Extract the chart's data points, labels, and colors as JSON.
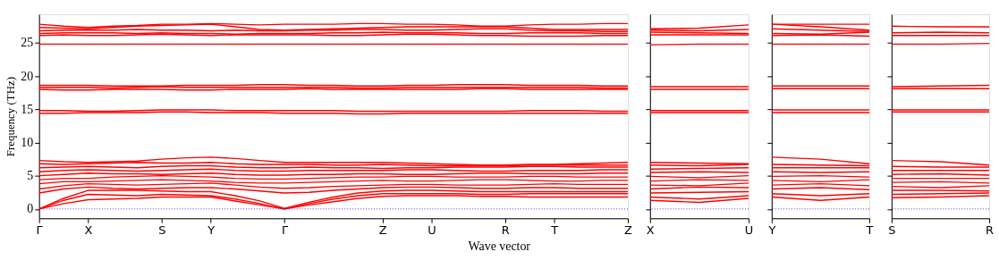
{
  "chart_data": [
    {
      "type": "line",
      "xlabel": "Wave vector",
      "ylabel": "Frequency (THz)",
      "ylim": [
        -1.4,
        29.3
      ],
      "yticks": [
        0,
        5,
        10,
        15,
        20,
        25
      ],
      "categories": [
        "Γ",
        null,
        "X",
        null,
        null,
        "S",
        null,
        "Y",
        null,
        null,
        "Γ",
        null,
        null,
        null,
        "Z",
        null,
        "U",
        null,
        null,
        "R",
        null,
        "T",
        null,
        null,
        "Z"
      ],
      "ref_lines": [
        {
          "axis": "y",
          "value": 0,
          "color": "#0000ff",
          "line_style": "dotted"
        }
      ],
      "series": [
        {
          "color": "#ff0000",
          "values": [
            0,
            0.8,
            1.4,
            1.5,
            1.6,
            1.8,
            1.8,
            1.8,
            1.2,
            0.6,
            0,
            0.6,
            1.1,
            1.6,
            1.9,
            2.0,
            2.0,
            2.0,
            1.9,
            1.9,
            1.8,
            1.8,
            1.8,
            1.8,
            1.8
          ]
        },
        {
          "color": "#ff0000",
          "values": [
            0,
            1.3,
            2.2,
            2.1,
            2.0,
            2.2,
            2.1,
            2.0,
            1.5,
            0.8,
            0,
            0.8,
            1.5,
            2.0,
            2.3,
            2.3,
            2.3,
            2.3,
            2.2,
            2.2,
            2.3,
            2.3,
            2.3,
            2.3,
            2.3
          ]
        },
        {
          "color": "#ff0000",
          "values": [
            0,
            1.6,
            2.8,
            2.8,
            2.8,
            2.7,
            2.6,
            2.6,
            2.0,
            1.2,
            0.1,
            1.0,
            1.8,
            2.4,
            2.7,
            2.8,
            2.8,
            2.7,
            2.6,
            2.6,
            2.6,
            2.6,
            2.6,
            2.6,
            2.6
          ]
        },
        {
          "color": "#ff0000",
          "values": [
            2.4,
            3.0,
            3.3,
            3.1,
            3.0,
            3.1,
            3.2,
            3.2,
            3.0,
            2.7,
            2.4,
            2.5,
            2.8,
            3.0,
            3.2,
            3.3,
            3.3,
            3.2,
            3.1,
            3.1,
            3.2,
            3.2,
            3.1,
            3.1,
            3.1
          ]
        },
        {
          "color": "#ff0000",
          "values": [
            3.0,
            3.5,
            3.8,
            3.7,
            3.6,
            3.7,
            3.8,
            3.9,
            3.6,
            3.3,
            3.1,
            3.2,
            3.4,
            3.5,
            3.6,
            3.7,
            3.7,
            3.6,
            3.6,
            3.6,
            3.7,
            3.8,
            3.7,
            3.7,
            3.7
          ]
        },
        {
          "color": "#ff0000",
          "values": [
            3.8,
            4.1,
            4.1,
            4.2,
            4.3,
            4.4,
            4.3,
            4.2,
            4.0,
            3.9,
            3.9,
            4.0,
            4.1,
            4.2,
            4.3,
            4.2,
            4.2,
            4.3,
            4.4,
            4.4,
            4.3,
            4.2,
            4.2,
            4.3,
            4.3
          ]
        },
        {
          "color": "#ff0000",
          "values": [
            4.4,
            4.6,
            4.6,
            4.8,
            4.9,
            5.0,
            4.9,
            4.8,
            4.6,
            4.5,
            4.5,
            4.6,
            4.7,
            4.8,
            4.8,
            4.9,
            4.9,
            4.8,
            4.8,
            4.8,
            4.9,
            4.9,
            4.8,
            4.8,
            4.8
          ]
        },
        {
          "color": "#ff0000",
          "values": [
            5.0,
            5.2,
            5.4,
            5.3,
            5.3,
            5.2,
            5.3,
            5.4,
            5.2,
            5.1,
            5.1,
            5.2,
            5.2,
            5.3,
            5.3,
            5.2,
            5.2,
            5.3,
            5.4,
            5.4,
            5.3,
            5.3,
            5.3,
            5.4,
            5.4
          ]
        },
        {
          "color": "#ff0000",
          "values": [
            5.6,
            5.8,
            5.9,
            5.8,
            5.7,
            5.8,
            5.9,
            6.0,
            5.8,
            5.7,
            5.7,
            5.8,
            5.8,
            5.8,
            5.8,
            5.9,
            5.9,
            5.8,
            5.7,
            5.7,
            5.8,
            5.8,
            5.8,
            5.9,
            5.9
          ]
        },
        {
          "color": "#ff0000",
          "values": [
            6.2,
            6.3,
            6.4,
            6.3,
            6.2,
            6.4,
            6.5,
            6.5,
            6.3,
            6.2,
            6.2,
            6.3,
            6.2,
            6.2,
            6.1,
            6.2,
            6.2,
            6.3,
            6.3,
            6.3,
            6.4,
            6.4,
            6.3,
            6.3,
            6.3
          ]
        },
        {
          "color": "#ff0000",
          "values": [
            6.8,
            6.7,
            6.8,
            6.9,
            7.0,
            6.9,
            6.9,
            7.0,
            6.8,
            6.7,
            6.7,
            6.7,
            6.6,
            6.6,
            6.7,
            6.6,
            6.5,
            6.5,
            6.5,
            6.5,
            6.6,
            6.6,
            6.6,
            6.6,
            6.6
          ]
        },
        {
          "color": "#ff0000",
          "values": [
            7.3,
            7.1,
            7.0,
            7.1,
            7.2,
            7.5,
            7.7,
            7.8,
            7.6,
            7.3,
            7.0,
            7.0,
            7.0,
            7.0,
            7.0,
            6.9,
            6.8,
            6.7,
            6.6,
            6.6,
            6.7,
            6.7,
            6.8,
            6.9,
            7.0
          ]
        },
        {
          "color": "#ff0000",
          "values": [
            14.4,
            14.4,
            14.5,
            14.5,
            14.5,
            14.6,
            14.6,
            14.5,
            14.5,
            14.5,
            14.4,
            14.4,
            14.4,
            14.3,
            14.3,
            14.4,
            14.4,
            14.4,
            14.4,
            14.4,
            14.4,
            14.4,
            14.4,
            14.4,
            14.4
          ]
        },
        {
          "color": "#ff0000",
          "values": [
            14.8,
            14.8,
            14.7,
            14.7,
            14.8,
            14.9,
            14.9,
            14.9,
            14.8,
            14.8,
            14.8,
            14.8,
            14.8,
            14.7,
            14.7,
            14.7,
            14.7,
            14.7,
            14.7,
            14.7,
            14.8,
            14.8,
            14.8,
            14.7,
            14.7
          ]
        },
        {
          "color": "#ff0000",
          "values": [
            18.0,
            17.9,
            17.9,
            18.0,
            18.0,
            18.0,
            17.9,
            17.9,
            18.0,
            18.0,
            18.0,
            18.1,
            18.0,
            18.0,
            18.0,
            18.0,
            18.0,
            18.0,
            18.1,
            18.1,
            18.0,
            18.0,
            18.0,
            18.0,
            18.0
          ]
        },
        {
          "color": "#ff0000",
          "values": [
            18.3,
            18.3,
            18.3,
            18.2,
            18.3,
            18.4,
            18.3,
            18.3,
            18.3,
            18.3,
            18.3,
            18.3,
            18.3,
            18.2,
            18.2,
            18.3,
            18.3,
            18.3,
            18.3,
            18.3,
            18.3,
            18.3,
            18.3,
            18.2,
            18.2
          ]
        },
        {
          "color": "#ff0000",
          "values": [
            18.6,
            18.6,
            18.6,
            18.5,
            18.5,
            18.5,
            18.6,
            18.6,
            18.6,
            18.7,
            18.7,
            18.6,
            18.6,
            18.5,
            18.5,
            18.6,
            18.6,
            18.7,
            18.7,
            18.7,
            18.6,
            18.6,
            18.6,
            18.5,
            18.5
          ]
        },
        {
          "color": "#ff0000",
          "values": [
            24.8,
            24.8,
            24.8,
            24.8,
            24.8,
            24.8,
            24.8,
            24.8,
            24.8,
            24.8,
            24.8,
            24.8,
            24.8,
            24.8,
            24.8,
            24.8,
            24.8,
            24.8,
            24.8,
            24.8,
            24.8,
            24.8,
            24.8,
            24.8,
            24.8
          ]
        },
        {
          "color": "#ff0000",
          "values": [
            26.1,
            26.2,
            26.1,
            26.1,
            26.2,
            26.3,
            26.2,
            26.1,
            26.2,
            26.2,
            26.2,
            26.2,
            26.1,
            26.1,
            26.2,
            26.3,
            26.3,
            26.2,
            26.1,
            26.1,
            26.0,
            26.0,
            26.0,
            26.1,
            26.1
          ]
        },
        {
          "color": "#ff0000",
          "values": [
            26.4,
            26.5,
            26.5,
            26.5,
            26.4,
            26.5,
            26.4,
            26.4,
            26.3,
            26.4,
            26.4,
            26.4,
            26.5,
            26.5,
            26.6,
            26.5,
            26.5,
            26.5,
            26.4,
            26.4,
            26.5,
            26.5,
            26.5,
            26.4,
            26.4
          ]
        },
        {
          "color": "#ff0000",
          "values": [
            26.8,
            26.9,
            26.9,
            26.9,
            27.0,
            26.9,
            26.9,
            26.8,
            26.9,
            26.8,
            26.8,
            26.9,
            26.9,
            27.0,
            27.0,
            26.9,
            26.9,
            27.0,
            27.1,
            27.1,
            26.9,
            26.8,
            26.8,
            26.7,
            26.7
          ]
        },
        {
          "color": "#ff0000",
          "values": [
            27.3,
            27.2,
            27.1,
            27.3,
            27.5,
            27.6,
            27.7,
            27.8,
            27.4,
            27.0,
            26.9,
            27.0,
            27.1,
            27.2,
            27.3,
            27.4,
            27.4,
            27.4,
            27.4,
            27.4,
            27.2,
            27.0,
            27.0,
            27.0,
            27.0
          ]
        },
        {
          "color": "#ff0000",
          "values": [
            27.8,
            27.5,
            27.3,
            27.5,
            27.6,
            27.8,
            27.8,
            27.9,
            27.8,
            27.7,
            27.8,
            27.8,
            27.8,
            27.9,
            27.9,
            27.8,
            27.8,
            27.7,
            27.5,
            27.5,
            27.7,
            27.8,
            27.8,
            27.9,
            27.9
          ]
        }
      ]
    },
    {
      "type": "line",
      "tick_labels": "x",
      "ylim": [
        -1.4,
        29.3
      ],
      "yticks": [
        0,
        5,
        10,
        15,
        20,
        25
      ],
      "categories": [
        "X",
        null,
        "U"
      ],
      "ref_lines": [
        {
          "axis": "y",
          "value": 0,
          "color": "#0000ff",
          "line_style": "dotted"
        }
      ],
      "series": [
        {
          "color": "#ff0000",
          "values": [
            1.3,
            1.0,
            1.6
          ]
        },
        {
          "color": "#ff0000",
          "values": [
            1.8,
            1.5,
            2.0
          ]
        },
        {
          "color": "#ff0000",
          "values": [
            2.4,
            2.5,
            2.6
          ]
        },
        {
          "color": "#ff0000",
          "values": [
            3.0,
            3.3,
            3.2
          ]
        },
        {
          "color": "#ff0000",
          "values": [
            3.6,
            3.5,
            3.9
          ]
        },
        {
          "color": "#ff0000",
          "values": [
            4.2,
            4.4,
            4.3
          ]
        },
        {
          "color": "#ff0000",
          "values": [
            4.9,
            4.7,
            5.0
          ]
        },
        {
          "color": "#ff0000",
          "values": [
            5.5,
            5.6,
            5.5
          ]
        },
        {
          "color": "#ff0000",
          "values": [
            6.0,
            6.1,
            6.2
          ]
        },
        {
          "color": "#ff0000",
          "values": [
            6.6,
            6.5,
            6.7
          ]
        },
        {
          "color": "#ff0000",
          "values": [
            7.0,
            6.9,
            6.8
          ]
        },
        {
          "color": "#ff0000",
          "values": [
            14.5,
            14.5,
            14.5
          ]
        },
        {
          "color": "#ff0000",
          "values": [
            14.8,
            14.8,
            14.8
          ]
        },
        {
          "color": "#ff0000",
          "values": [
            18.0,
            18.0,
            18.0
          ]
        },
        {
          "color": "#ff0000",
          "values": [
            18.4,
            18.4,
            18.4
          ]
        },
        {
          "color": "#ff0000",
          "values": [
            24.7,
            24.8,
            24.8
          ]
        },
        {
          "color": "#ff0000",
          "values": [
            26.2,
            26.2,
            26.2
          ]
        },
        {
          "color": "#ff0000",
          "values": [
            26.6,
            26.5,
            26.4
          ]
        },
        {
          "color": "#ff0000",
          "values": [
            26.9,
            26.8,
            27.0
          ]
        },
        {
          "color": "#ff0000",
          "values": [
            27.1,
            27.2,
            27.7
          ]
        }
      ]
    },
    {
      "type": "line",
      "tick_labels": "x",
      "ylim": [
        -1.4,
        29.3
      ],
      "yticks": [
        0,
        5,
        10,
        15,
        20,
        25
      ],
      "categories": [
        "Y",
        null,
        "T"
      ],
      "ref_lines": [
        {
          "axis": "y",
          "value": 0,
          "color": "#0000ff",
          "line_style": "dotted"
        }
      ],
      "series": [
        {
          "color": "#ff0000",
          "values": [
            1.8,
            1.3,
            1.8
          ]
        },
        {
          "color": "#ff0000",
          "values": [
            2.3,
            2.0,
            2.3
          ]
        },
        {
          "color": "#ff0000",
          "values": [
            3.0,
            3.2,
            2.9
          ]
        },
        {
          "color": "#ff0000",
          "values": [
            3.6,
            3.8,
            3.5
          ]
        },
        {
          "color": "#ff0000",
          "values": [
            4.3,
            4.1,
            4.4
          ]
        },
        {
          "color": "#ff0000",
          "values": [
            4.9,
            5.0,
            4.8
          ]
        },
        {
          "color": "#ff0000",
          "values": [
            5.6,
            5.5,
            5.6
          ]
        },
        {
          "color": "#ff0000",
          "values": [
            6.2,
            6.2,
            6.2
          ]
        },
        {
          "color": "#ff0000",
          "values": [
            6.7,
            6.6,
            6.5
          ]
        },
        {
          "color": "#ff0000",
          "values": [
            7.8,
            7.5,
            6.8
          ]
        },
        {
          "color": "#ff0000",
          "values": [
            14.5,
            14.5,
            14.5
          ]
        },
        {
          "color": "#ff0000",
          "values": [
            14.9,
            14.9,
            14.9
          ]
        },
        {
          "color": "#ff0000",
          "values": [
            18.1,
            18.1,
            18.1
          ]
        },
        {
          "color": "#ff0000",
          "values": [
            18.5,
            18.5,
            18.5
          ]
        },
        {
          "color": "#ff0000",
          "values": [
            24.8,
            24.8,
            24.8
          ]
        },
        {
          "color": "#ff0000",
          "values": [
            26.1,
            26.2,
            26.0
          ]
        },
        {
          "color": "#ff0000",
          "values": [
            26.4,
            26.3,
            26.6
          ]
        },
        {
          "color": "#ff0000",
          "values": [
            27.1,
            26.9,
            26.7
          ]
        },
        {
          "color": "#ff0000",
          "values": [
            27.8,
            27.4,
            26.9
          ]
        },
        {
          "color": "#ff0000",
          "values": [
            27.8,
            27.8,
            27.8
          ]
        }
      ]
    },
    {
      "type": "line",
      "tick_labels": "x",
      "ylim": [
        -1.4,
        29.3
      ],
      "yticks": [
        0,
        5,
        10,
        15,
        20,
        25
      ],
      "categories": [
        "S",
        null,
        "R"
      ],
      "ref_lines": [
        {
          "axis": "y",
          "value": 0,
          "color": "#0000ff",
          "line_style": "dotted"
        }
      ],
      "series": [
        {
          "color": "#ff0000",
          "values": [
            1.7,
            1.8,
            2.0
          ]
        },
        {
          "color": "#ff0000",
          "values": [
            2.2,
            2.3,
            2.4
          ]
        },
        {
          "color": "#ff0000",
          "values": [
            2.8,
            2.8,
            2.7
          ]
        },
        {
          "color": "#ff0000",
          "values": [
            3.4,
            3.2,
            3.5
          ]
        },
        {
          "color": "#ff0000",
          "values": [
            4.0,
            4.1,
            3.9
          ]
        },
        {
          "color": "#ff0000",
          "values": [
            4.6,
            4.6,
            4.6
          ]
        },
        {
          "color": "#ff0000",
          "values": [
            5.2,
            5.3,
            5.1
          ]
        },
        {
          "color": "#ff0000",
          "values": [
            5.8,
            5.8,
            5.8
          ]
        },
        {
          "color": "#ff0000",
          "values": [
            6.4,
            6.3,
            6.3
          ]
        },
        {
          "color": "#ff0000",
          "values": [
            7.3,
            7.1,
            6.6
          ]
        },
        {
          "color": "#ff0000",
          "values": [
            14.6,
            14.6,
            14.6
          ]
        },
        {
          "color": "#ff0000",
          "values": [
            14.9,
            14.9,
            14.9
          ]
        },
        {
          "color": "#ff0000",
          "values": [
            18.1,
            18.1,
            18.1
          ]
        },
        {
          "color": "#ff0000",
          "values": [
            18.4,
            18.5,
            18.6
          ]
        },
        {
          "color": "#ff0000",
          "values": [
            24.8,
            24.8,
            24.9
          ]
        },
        {
          "color": "#ff0000",
          "values": [
            26.1,
            26.1,
            26.1
          ]
        },
        {
          "color": "#ff0000",
          "values": [
            26.5,
            26.6,
            26.5
          ]
        },
        {
          "color": "#ff0000",
          "values": [
            27.5,
            27.4,
            27.4
          ]
        }
      ]
    }
  ]
}
